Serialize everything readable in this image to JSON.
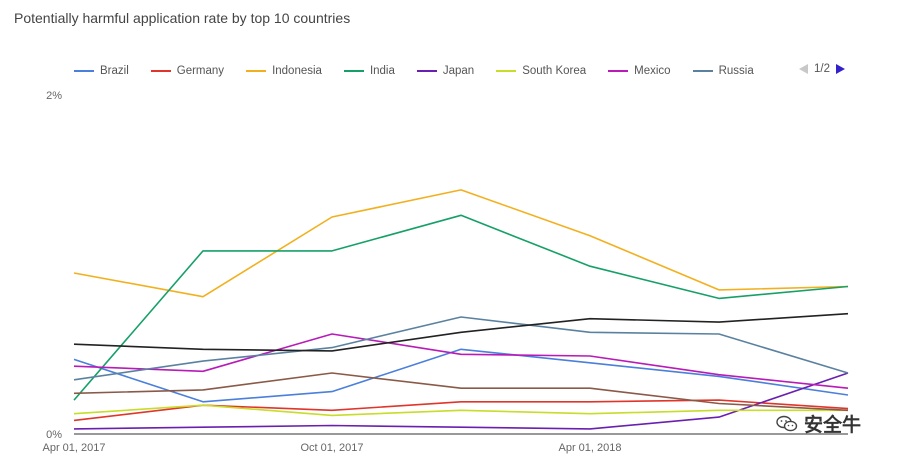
{
  "chart_data": {
    "type": "line",
    "title": "Potentially harmful application rate by top 10 countries",
    "xlabel": "",
    "ylabel": "",
    "x": [
      "2017-04-01",
      "2017-07-01",
      "2017-10-01",
      "2018-01-01",
      "2018-04-01",
      "2018-07-01",
      "2018-10-01"
    ],
    "x_ticks": [
      {
        "index": 0,
        "label": "Apr 01, 2017"
      },
      {
        "index": 2,
        "label": "Oct 01, 2017"
      },
      {
        "index": 4,
        "label": "Apr 01, 2018"
      }
    ],
    "y_ticks": [
      {
        "value": 2,
        "label": "2%"
      },
      {
        "value": 0,
        "label": "0%"
      }
    ],
    "ylim": [
      0,
      2
    ],
    "grid": false,
    "legend_position": "top",
    "legend_page": "1/2",
    "series": [
      {
        "name": "Brazil",
        "color": "#4a7fdc",
        "values": [
          0.44,
          0.19,
          0.25,
          0.5,
          0.42,
          0.34,
          0.23
        ]
      },
      {
        "name": "Germany",
        "color": "#e0352b",
        "values": [
          0.08,
          0.17,
          0.14,
          0.19,
          0.19,
          0.2,
          0.15
        ]
      },
      {
        "name": "Indonesia",
        "color": "#f2b01e",
        "values": [
          0.95,
          0.81,
          1.28,
          1.44,
          1.17,
          0.85,
          0.87
        ]
      },
      {
        "name": "India",
        "color": "#16a068",
        "values": [
          0.2,
          1.08,
          1.08,
          1.29,
          0.99,
          0.8,
          0.87
        ]
      },
      {
        "name": "Japan",
        "color": "#6a1fb0",
        "values": [
          0.03,
          0.04,
          0.05,
          0.04,
          0.03,
          0.1,
          0.36
        ]
      },
      {
        "name": "South Korea",
        "color": "#c8dc2a",
        "values": [
          0.12,
          0.17,
          0.11,
          0.14,
          0.12,
          0.14,
          0.14
        ]
      },
      {
        "name": "Mexico",
        "color": "#b81bb8",
        "values": [
          0.4,
          0.37,
          0.59,
          0.47,
          0.46,
          0.35,
          0.27
        ]
      },
      {
        "name": "Russia",
        "color": "#5a82a0",
        "values": [
          0.32,
          0.43,
          0.51,
          0.69,
          0.6,
          0.59,
          0.36
        ]
      },
      {
        "color": "#222222",
        "values": [
          0.53,
          0.5,
          0.49,
          0.6,
          0.68,
          0.66,
          0.71
        ]
      },
      {
        "color": "#8a5a48",
        "values": [
          0.24,
          0.26,
          0.36,
          0.27,
          0.27,
          0.18,
          0.14
        ]
      }
    ]
  },
  "watermark": {
    "text": "安全牛",
    "icon": "wechat-icon"
  }
}
